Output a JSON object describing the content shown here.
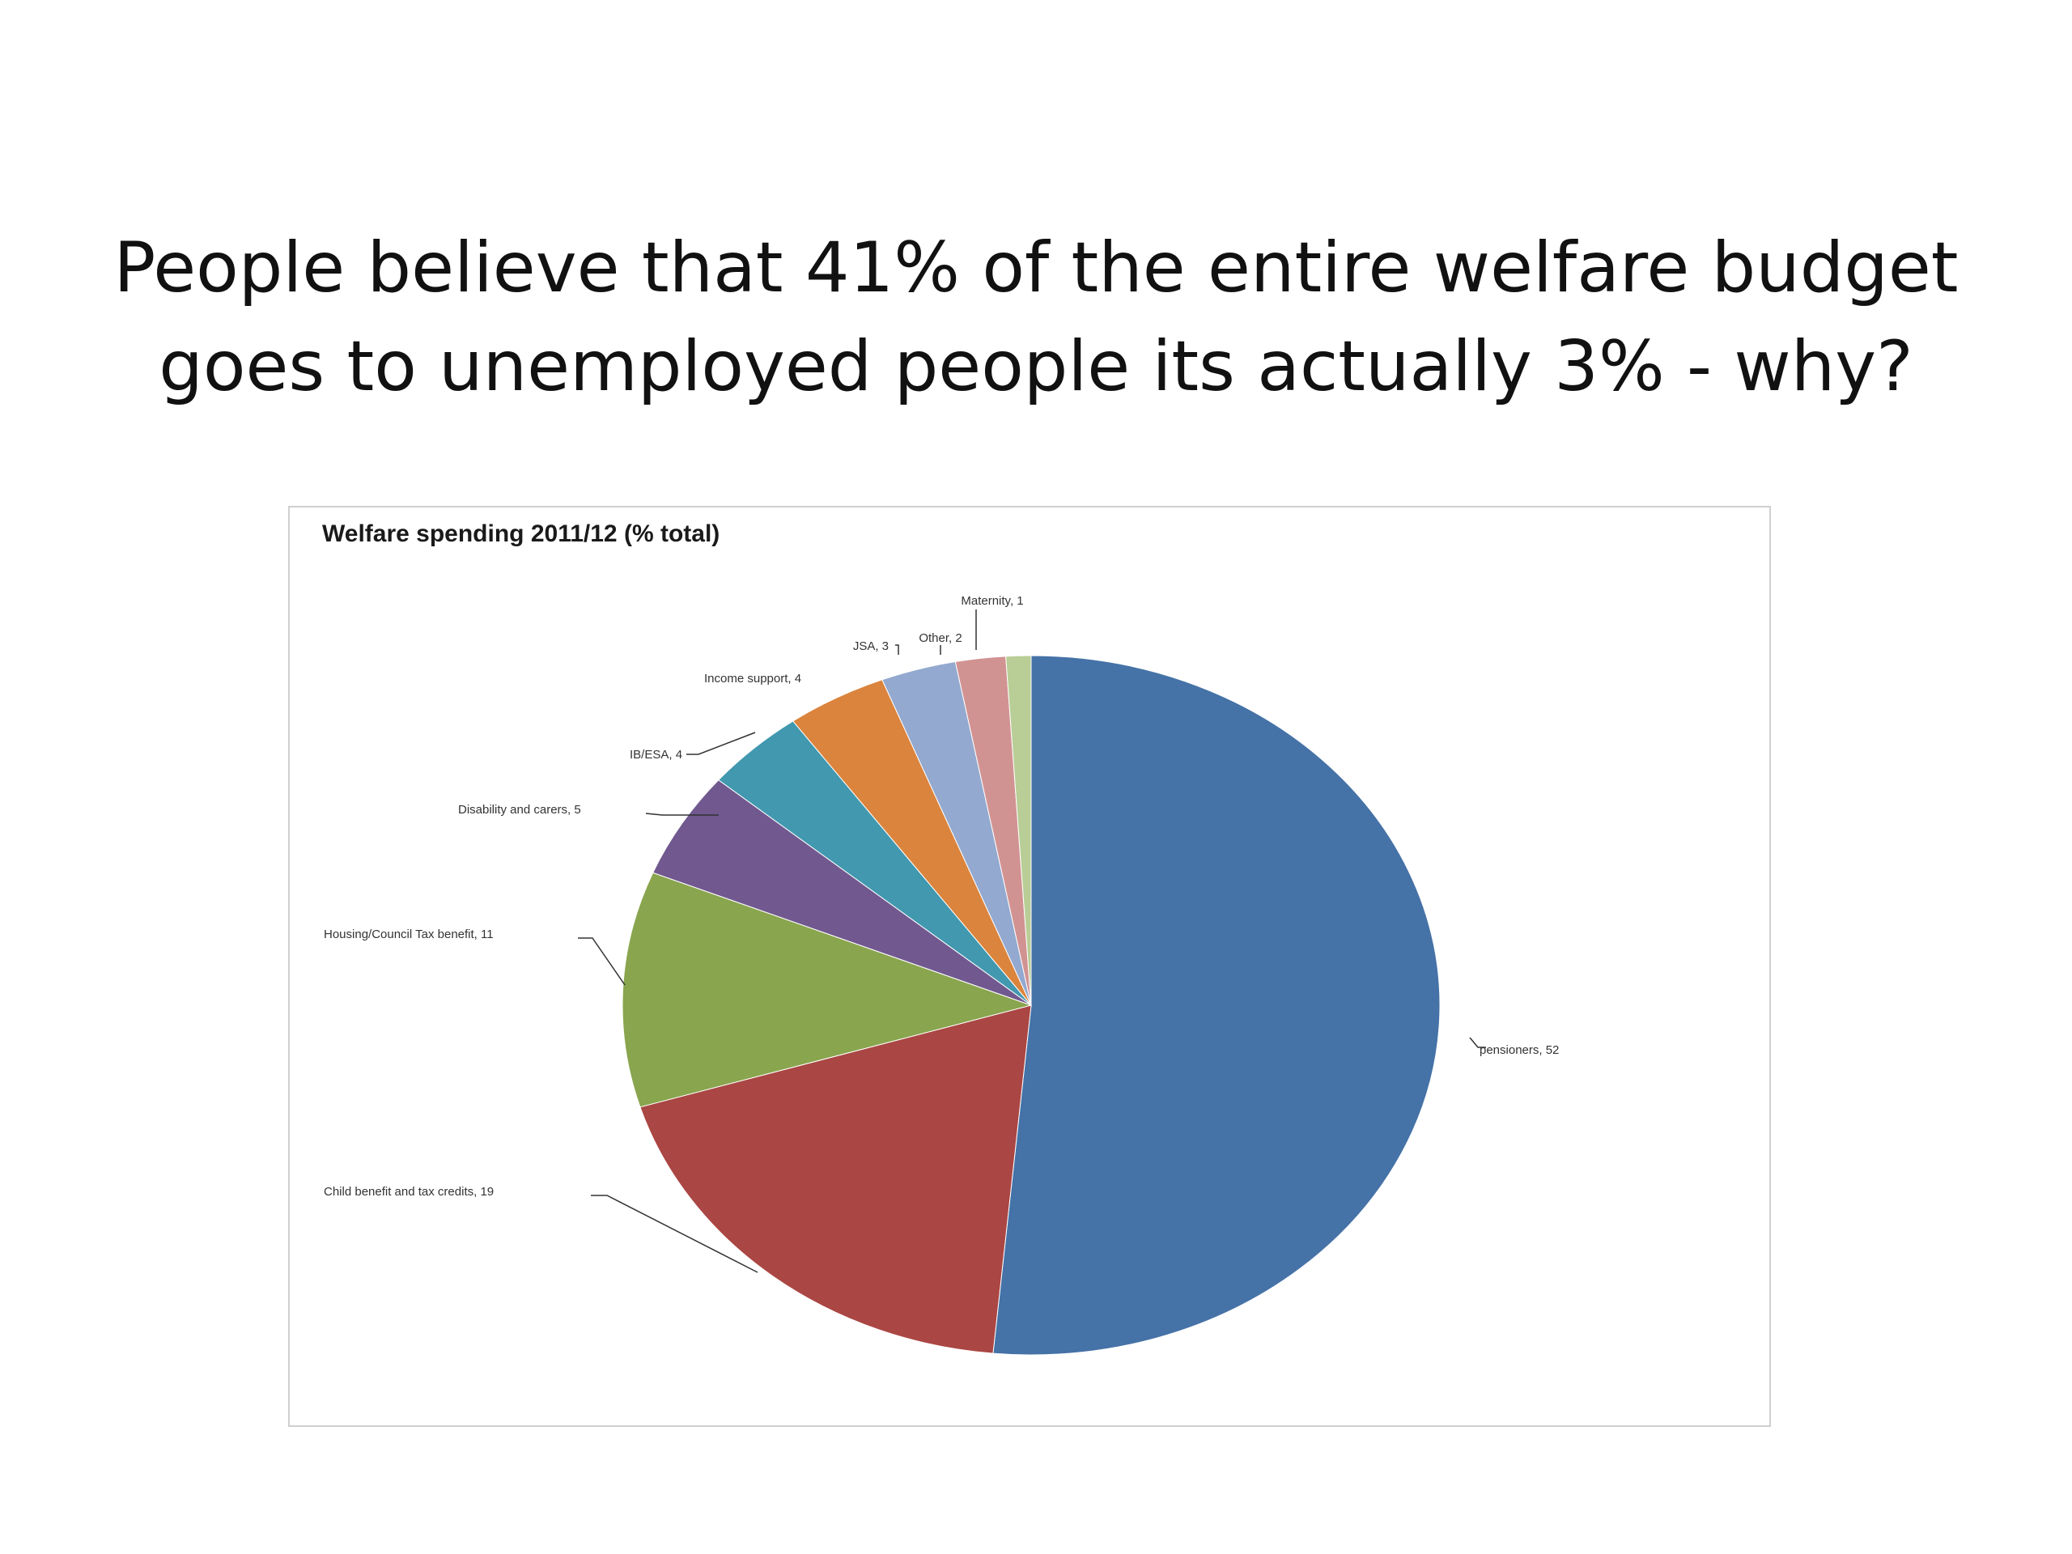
{
  "slide": {
    "title_line1": "People believe that 41% of the entire welfare budget",
    "title_line2": "goes to unemployed people its actually 3% - why?"
  },
  "chart_data": {
    "type": "pie",
    "title": "Welfare spending 2011/12 (% total)",
    "slices": [
      {
        "label": "pensioners, 52",
        "name": "pensioners",
        "value": 52,
        "color": "#4572a7"
      },
      {
        "label": "Child benefit and tax credits, 19",
        "name": "Child benefit and tax credits",
        "value": 19,
        "color": "#aa4643"
      },
      {
        "label": "Housing/Council Tax benefit, 11",
        "name": "Housing/Council Tax benefit",
        "value": 11,
        "color": "#89a54e"
      },
      {
        "label": "Disability and carers, 5",
        "name": "Disability and carers",
        "value": 5,
        "color": "#71588f"
      },
      {
        "label": "IB/ESA, 4",
        "name": "IB/ESA",
        "value": 4,
        "color": "#4198af"
      },
      {
        "label": "Income support, 4",
        "name": "Income support",
        "value": 4,
        "color": "#db843d"
      },
      {
        "label": "JSA, 3",
        "name": "JSA",
        "value": 3,
        "color": "#93a9cf"
      },
      {
        "label": "Other, 2",
        "name": "Other",
        "value": 2,
        "color": "#d19392"
      },
      {
        "label": "Maternity, 1",
        "name": "Maternity",
        "value": 1,
        "color": "#b9cd96"
      }
    ]
  }
}
